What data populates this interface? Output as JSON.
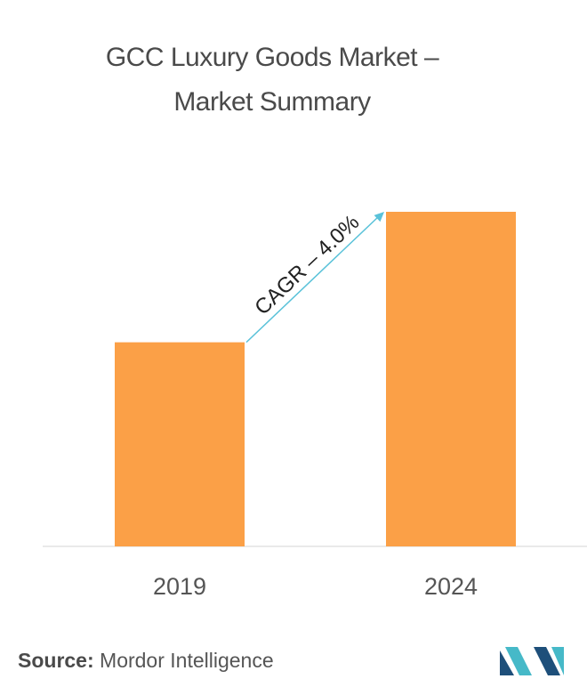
{
  "title_line1": "GCC Luxury Goods Market –",
  "title_line2": "Market Summary",
  "chart_data": {
    "type": "bar",
    "title": "GCC Luxury Goods Market – Market Summary",
    "categories": [
      "2019",
      "2024"
    ],
    "values": [
      0.61,
      1.0
    ],
    "ylim": [
      0,
      1.0
    ],
    "bar_color": "#fba047",
    "annotation": "CAGR – 4.0%",
    "annotation_color": "#5ac2d9"
  },
  "source_label": "Source:",
  "source_value": "Mordor Intelligence",
  "logo_colors": [
    "#1e4f7a",
    "#46b9c8"
  ]
}
